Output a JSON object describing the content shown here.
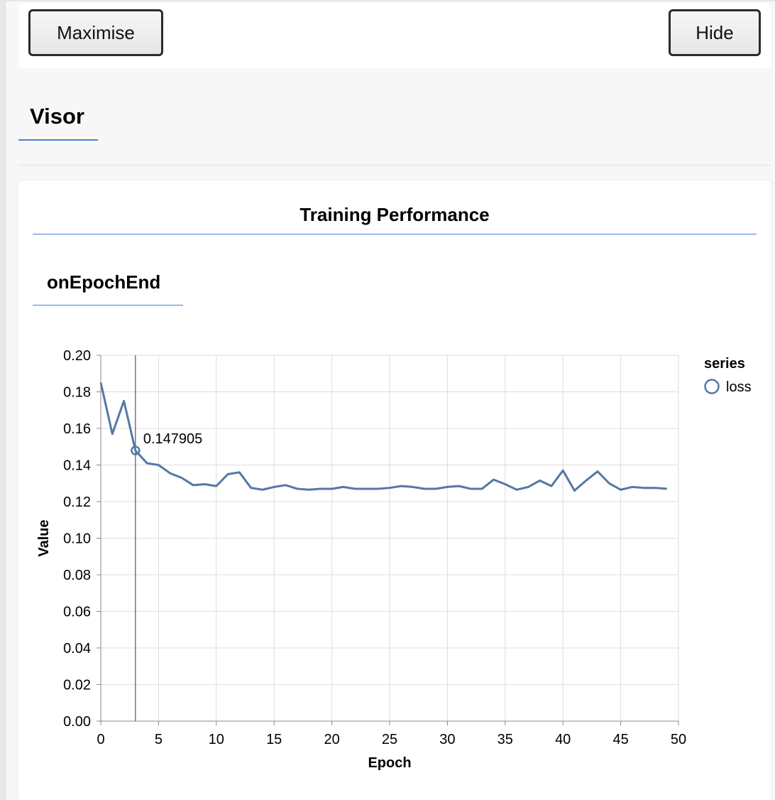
{
  "controls": {
    "maximise_label": "Maximise",
    "hide_label": "Hide"
  },
  "visor_tab": {
    "label": "Visor"
  },
  "panel": {
    "title": "Training Performance",
    "subtab_label": "onEpochEnd"
  },
  "colors": {
    "accent": "#4a7fd6",
    "series_line": "#5577a6"
  },
  "chart_data": {
    "type": "line",
    "xlabel": "Epoch",
    "ylabel": "Value",
    "xlim": [
      0,
      50
    ],
    "ylim": [
      0,
      0.2
    ],
    "x_ticks": [
      0,
      5,
      10,
      15,
      20,
      25,
      30,
      35,
      40,
      45,
      50
    ],
    "y_ticks": [
      0,
      0.02,
      0.04,
      0.06,
      0.08,
      0.1,
      0.12,
      0.14,
      0.16,
      0.18,
      0.2
    ],
    "y_tick_labels": [
      "0.00",
      "0.02",
      "0.04",
      "0.06",
      "0.08",
      "0.10",
      "0.12",
      "0.14",
      "0.16",
      "0.18",
      "0.20"
    ],
    "grid": true,
    "legend": {
      "title": "series",
      "placement": "right",
      "entries": [
        "loss"
      ]
    },
    "series": [
      {
        "name": "loss",
        "x": [
          0,
          1,
          2,
          3,
          4,
          5,
          6,
          7,
          8,
          9,
          10,
          11,
          12,
          13,
          14,
          15,
          16,
          17,
          18,
          19,
          20,
          21,
          22,
          23,
          24,
          25,
          26,
          27,
          28,
          29,
          30,
          31,
          32,
          33,
          34,
          35,
          36,
          37,
          38,
          39,
          40,
          41,
          42,
          43,
          44,
          45,
          46,
          47,
          48,
          49
        ],
        "values": [
          0.185,
          0.157,
          0.175,
          0.1479,
          0.141,
          0.14,
          0.1355,
          0.133,
          0.129,
          0.1295,
          0.1285,
          0.135,
          0.136,
          0.1275,
          0.1265,
          0.128,
          0.129,
          0.127,
          0.1265,
          0.127,
          0.127,
          0.128,
          0.127,
          0.127,
          0.127,
          0.1275,
          0.1285,
          0.128,
          0.127,
          0.127,
          0.128,
          0.1285,
          0.127,
          0.127,
          0.132,
          0.1295,
          0.1265,
          0.128,
          0.1315,
          0.1285,
          0.137,
          0.126,
          0.1315,
          0.1365,
          0.13,
          0.1265,
          0.128,
          0.1275,
          0.1275,
          0.127
        ]
      }
    ],
    "hover": {
      "epoch": 3,
      "value_label": "0.147905"
    }
  }
}
